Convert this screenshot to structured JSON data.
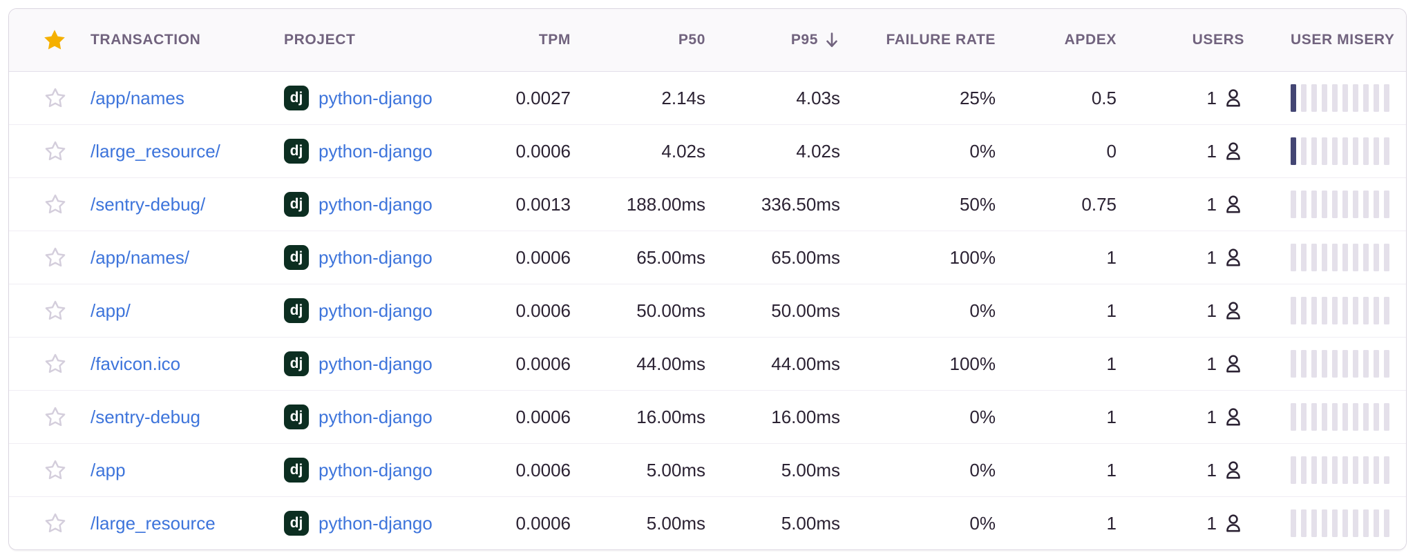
{
  "table": {
    "columns": [
      {
        "key": "favorite",
        "label": "",
        "align": "center"
      },
      {
        "key": "transaction",
        "label": "TRANSACTION",
        "align": "left"
      },
      {
        "key": "project",
        "label": "PROJECT",
        "align": "left"
      },
      {
        "key": "tpm",
        "label": "TPM",
        "align": "right"
      },
      {
        "key": "p50",
        "label": "P50",
        "align": "right"
      },
      {
        "key": "p95",
        "label": "P95",
        "align": "right",
        "sorted": "desc"
      },
      {
        "key": "failure_rate",
        "label": "FAILURE RATE",
        "align": "right"
      },
      {
        "key": "apdex",
        "label": "APDEX",
        "align": "right"
      },
      {
        "key": "users",
        "label": "USERS",
        "align": "right"
      },
      {
        "key": "user_misery",
        "label": "USER MISERY",
        "align": "left"
      }
    ],
    "project_badge": "dj",
    "rows": [
      {
        "transaction": "/app/names",
        "project": "python-django",
        "tpm": "0.0027",
        "p50": "2.14s",
        "p95": "4.03s",
        "failure_rate": "25%",
        "apdex": "0.5",
        "users": "1",
        "misery": {
          "filled": 1,
          "total": 10
        }
      },
      {
        "transaction": "/large_resource/",
        "project": "python-django",
        "tpm": "0.0006",
        "p50": "4.02s",
        "p95": "4.02s",
        "failure_rate": "0%",
        "apdex": "0",
        "users": "1",
        "misery": {
          "filled": 1,
          "total": 10
        }
      },
      {
        "transaction": "/sentry-debug/",
        "project": "python-django",
        "tpm": "0.0013",
        "p50": "188.00ms",
        "p95": "336.50ms",
        "failure_rate": "50%",
        "apdex": "0.75",
        "users": "1",
        "misery": {
          "filled": 0,
          "total": 10
        }
      },
      {
        "transaction": "/app/names/",
        "project": "python-django",
        "tpm": "0.0006",
        "p50": "65.00ms",
        "p95": "65.00ms",
        "failure_rate": "100%",
        "apdex": "1",
        "users": "1",
        "misery": {
          "filled": 0,
          "total": 10
        }
      },
      {
        "transaction": "/app/",
        "project": "python-django",
        "tpm": "0.0006",
        "p50": "50.00ms",
        "p95": "50.00ms",
        "failure_rate": "0%",
        "apdex": "1",
        "users": "1",
        "misery": {
          "filled": 0,
          "total": 10
        }
      },
      {
        "transaction": "/favicon.ico",
        "project": "python-django",
        "tpm": "0.0006",
        "p50": "44.00ms",
        "p95": "44.00ms",
        "failure_rate": "100%",
        "apdex": "1",
        "users": "1",
        "misery": {
          "filled": 0,
          "total": 10
        }
      },
      {
        "transaction": "/sentry-debug",
        "project": "python-django",
        "tpm": "0.0006",
        "p50": "16.00ms",
        "p95": "16.00ms",
        "failure_rate": "0%",
        "apdex": "1",
        "users": "1",
        "misery": {
          "filled": 0,
          "total": 10
        }
      },
      {
        "transaction": "/app",
        "project": "python-django",
        "tpm": "0.0006",
        "p50": "5.00ms",
        "p95": "5.00ms",
        "failure_rate": "0%",
        "apdex": "1",
        "users": "1",
        "misery": {
          "filled": 0,
          "total": 10
        }
      },
      {
        "transaction": "/large_resource",
        "project": "python-django",
        "tpm": "0.0006",
        "p50": "5.00ms",
        "p95": "5.00ms",
        "failure_rate": "0%",
        "apdex": "1",
        "users": "1",
        "misery": {
          "filled": 0,
          "total": 10
        }
      }
    ],
    "colors": {
      "link_blue": "#3d74db",
      "header_text": "#71637e",
      "body_text": "#2b2233",
      "star_gold": "#f5b000",
      "star_outline": "#d4cedc",
      "badge_bg": "#0c2e21",
      "misery_filled": "#444674",
      "misery_empty": "#e4e0ea"
    }
  }
}
